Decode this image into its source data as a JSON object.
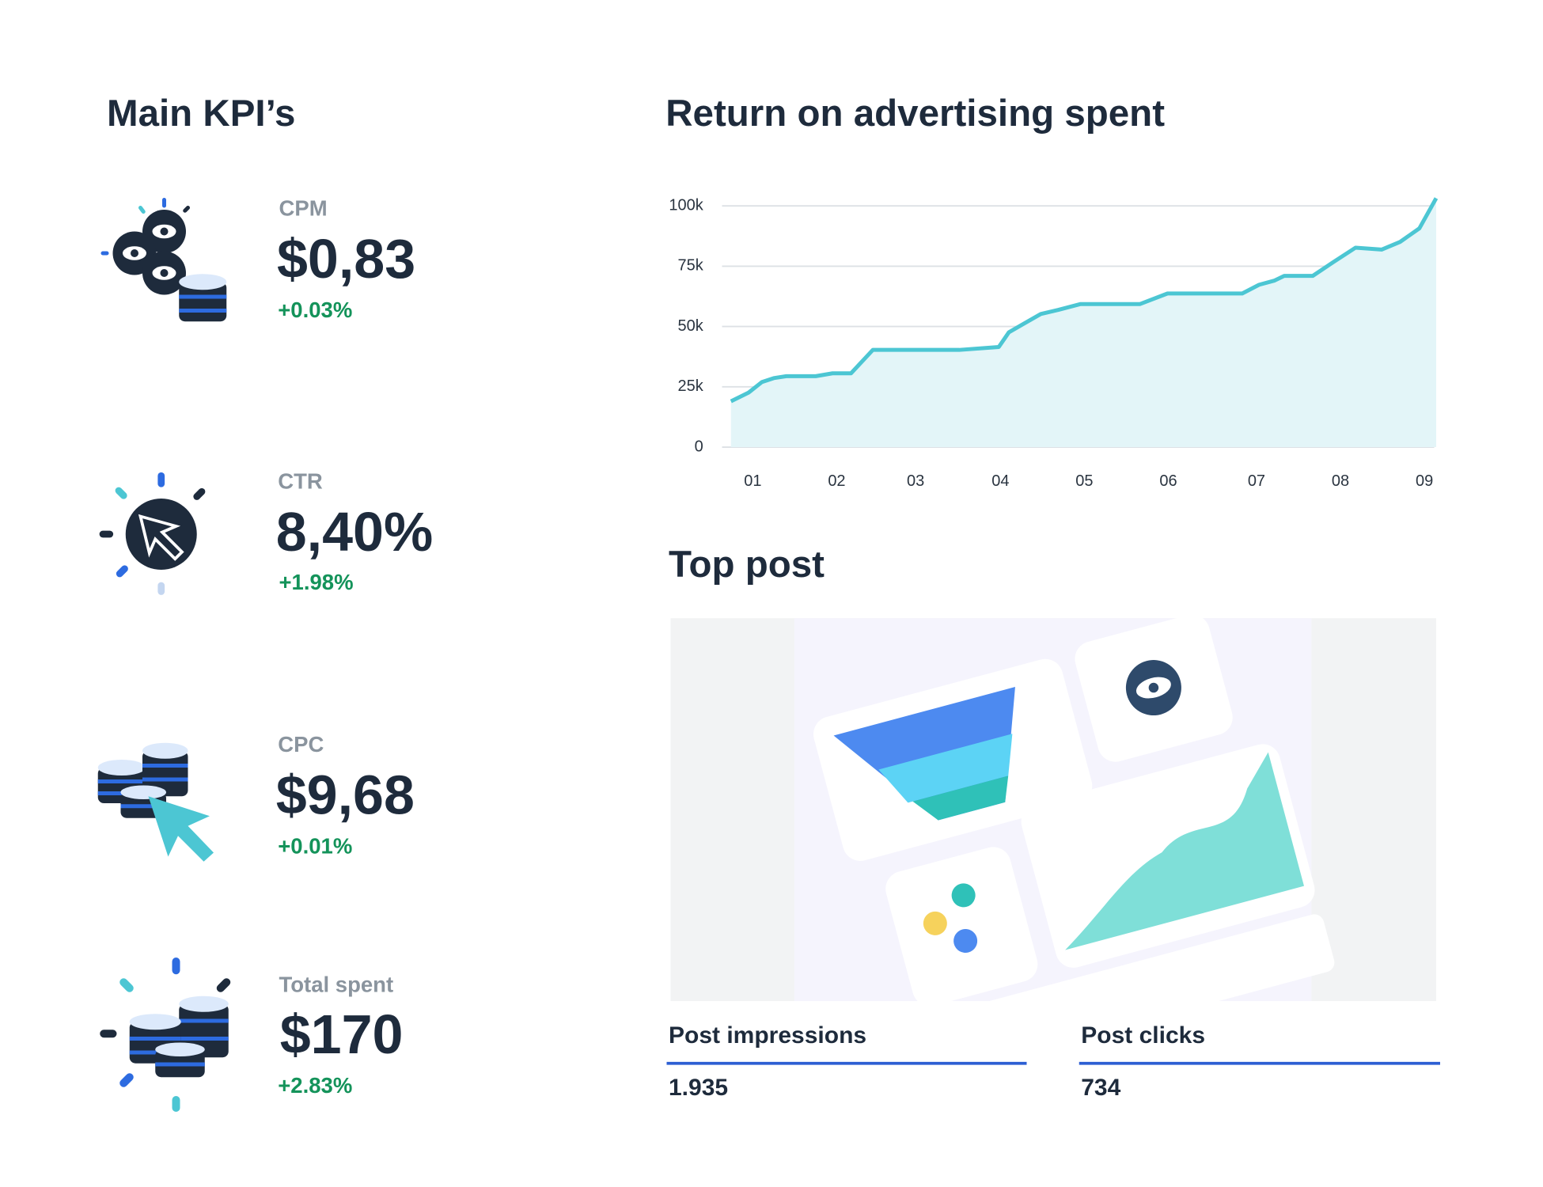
{
  "kpis": {
    "title": "Main KPI’s",
    "items": [
      {
        "label": "CPM",
        "value": "$0,83",
        "change": "+0.03%"
      },
      {
        "label": "CTR",
        "value": "8,40%",
        "change": "+1.98%"
      },
      {
        "label": "CPC",
        "value": "$9,68",
        "change": "+0.01%"
      },
      {
        "label": "Total spent",
        "value": "$170",
        "change": "+2.83%"
      }
    ]
  },
  "chart_data": {
    "type": "area",
    "title": "Return on advertising spent",
    "x": [
      0.74,
      0.95,
      1.11,
      1.25,
      1.4,
      1.75,
      1.95,
      2.17,
      2.43,
      3.46,
      3.93,
      4.05,
      4.23,
      4.43,
      4.64,
      4.9,
      5.61,
      5.94,
      6.83,
      7.03,
      7.21,
      7.33,
      7.67,
      7.91,
      8.18,
      8.49,
      8.71,
      8.94,
      9.14
    ],
    "values": [
      19000,
      22600,
      27000,
      28600,
      29400,
      29400,
      30600,
      30600,
      40300,
      40300,
      41500,
      47600,
      51200,
      55200,
      56900,
      59300,
      59300,
      63700,
      63700,
      67300,
      69000,
      71000,
      71000,
      76600,
      82700,
      81900,
      85100,
      90700,
      103200
    ],
    "color": "#4cc6d3",
    "fill_color": "#e3f5f8",
    "xlim": [
      0.74,
      9.14
    ],
    "xticks": [
      {
        "value": 1,
        "label": "01"
      },
      {
        "value": 2,
        "label": "02"
      },
      {
        "value": 2.94,
        "label": "03"
      },
      {
        "value": 3.95,
        "label": "04"
      },
      {
        "value": 4.95,
        "label": "05"
      },
      {
        "value": 5.95,
        "label": "06"
      },
      {
        "value": 7,
        "label": "07"
      },
      {
        "value": 8,
        "label": "08"
      },
      {
        "value": 9,
        "label": "09"
      }
    ],
    "ylim": [
      0,
      105000
    ],
    "yticks": [
      0,
      {
        "value": 25000,
        "label": "25k"
      },
      {
        "value": 50000,
        "label": "50k"
      },
      {
        "value": 75000,
        "label": "75k"
      },
      {
        "value": 100000,
        "label": "100k"
      }
    ],
    "grid": true
  },
  "top_post": {
    "title": "Top post",
    "metrics": [
      {
        "label": "Post impressions",
        "value": "1.935"
      },
      {
        "label": "Post clicks",
        "value": "734"
      }
    ]
  }
}
